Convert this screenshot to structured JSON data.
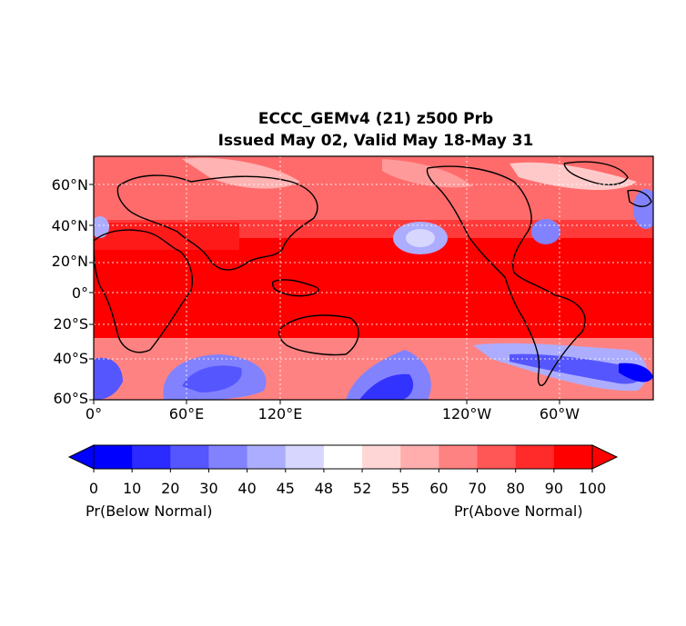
{
  "title": {
    "line1": "ECCC_GEMv4 (21) z500 Prb",
    "line2": "Issued May 02, Valid May 18-May 31"
  },
  "map": {
    "projection": "equirectangular",
    "lon_range": [
      0,
      360
    ],
    "lat_range": [
      -60,
      78
    ],
    "gridlines": "dotted white",
    "coastlines": true,
    "y_ticks": [
      {
        "lat": 60,
        "label": "60°N"
      },
      {
        "lat": 40,
        "label": "40°N"
      },
      {
        "lat": 20,
        "label": "20°N"
      },
      {
        "lat": 0,
        "label": "0°"
      },
      {
        "lat": -20,
        "label": "20°S"
      },
      {
        "lat": -40,
        "label": "40°S"
      },
      {
        "lat": -60,
        "label": "60°S"
      }
    ],
    "x_ticks": [
      {
        "lon": 0,
        "label": "0°"
      },
      {
        "lon": 60,
        "label": "60°E"
      },
      {
        "lon": 120,
        "label": "120°E"
      },
      {
        "lon": 240,
        "label": "120°W"
      },
      {
        "lon": 300,
        "label": "60°W"
      }
    ]
  },
  "colorbar": {
    "levels": [
      "0",
      "10",
      "20",
      "30",
      "40",
      "45",
      "48",
      "52",
      "55",
      "60",
      "70",
      "80",
      "90",
      "100"
    ],
    "colors": [
      "#0000ff",
      "#2b2bff",
      "#5656ff",
      "#8282ff",
      "#adadff",
      "#d6d6ff",
      "#ffffff",
      "#ffd6d6",
      "#ffadad",
      "#ff8282",
      "#ff5656",
      "#ff2b2b",
      "#ff0000"
    ],
    "left_label": "Pr(Below Normal)",
    "right_label": "Pr(Above Normal)"
  }
}
